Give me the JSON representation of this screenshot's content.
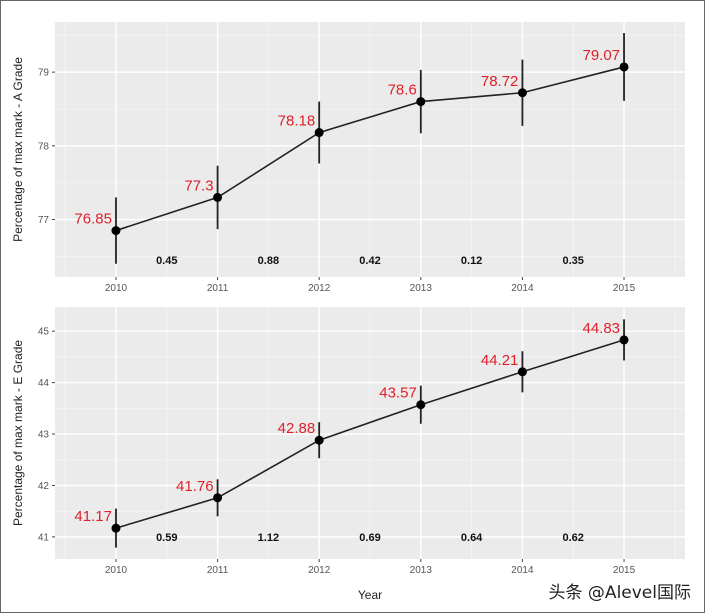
{
  "chart_data": [
    {
      "type": "line",
      "ylabel": "Percentage of max mark - A Grade",
      "xlabel": "",
      "x": [
        2010,
        2011,
        2012,
        2013,
        2014,
        2015
      ],
      "x_tick_labels": [
        "2010",
        "2011",
        "2012",
        "2013",
        "2014",
        "2015"
      ],
      "values": [
        76.85,
        77.3,
        78.18,
        78.6,
        78.72,
        79.07
      ],
      "value_labels": [
        "76.85",
        "77.3",
        "78.18",
        "78.6",
        "78.72",
        "79.07"
      ],
      "error": [
        0.45,
        0.43,
        0.42,
        0.43,
        0.45,
        0.46
      ],
      "y_ticks": [
        77,
        78,
        79
      ],
      "y_tick_labels": [
        "77",
        "78",
        "79"
      ],
      "ylim": [
        76.22,
        79.68
      ],
      "xlim": [
        2009.4,
        2015.6
      ],
      "differences": [
        "0.45",
        "0.88",
        "0.42",
        "0.12",
        "0.35"
      ],
      "difference_label_y": 76.45,
      "grid": true
    },
    {
      "type": "line",
      "ylabel": "Percentage of max mark - E Grade",
      "xlabel": "Year",
      "x": [
        2010,
        2011,
        2012,
        2013,
        2014,
        2015
      ],
      "x_tick_labels": [
        "2010",
        "2011",
        "2012",
        "2013",
        "2014",
        "2015"
      ],
      "values": [
        41.17,
        41.76,
        42.88,
        43.57,
        44.21,
        44.83
      ],
      "value_labels": [
        "41.17",
        "41.76",
        "42.88",
        "43.57",
        "44.21",
        "44.83"
      ],
      "error": [
        0.38,
        0.36,
        0.35,
        0.37,
        0.4,
        0.4
      ],
      "y_ticks": [
        41,
        42,
        43,
        44,
        45
      ],
      "y_tick_labels": [
        "41",
        "42",
        "43",
        "44",
        "45"
      ],
      "ylim": [
        40.57,
        45.47
      ],
      "xlim": [
        2009.4,
        2015.6
      ],
      "differences": [
        "0.59",
        "1.12",
        "0.69",
        "0.64",
        "0.62"
      ],
      "difference_label_y": 41.0,
      "grid": true
    }
  ],
  "colors": {
    "panel": "#ebebeb",
    "grid": "#ffffff",
    "label": "#e0202a",
    "line": "#222222"
  },
  "watermark": "头条 @Alevel国际"
}
